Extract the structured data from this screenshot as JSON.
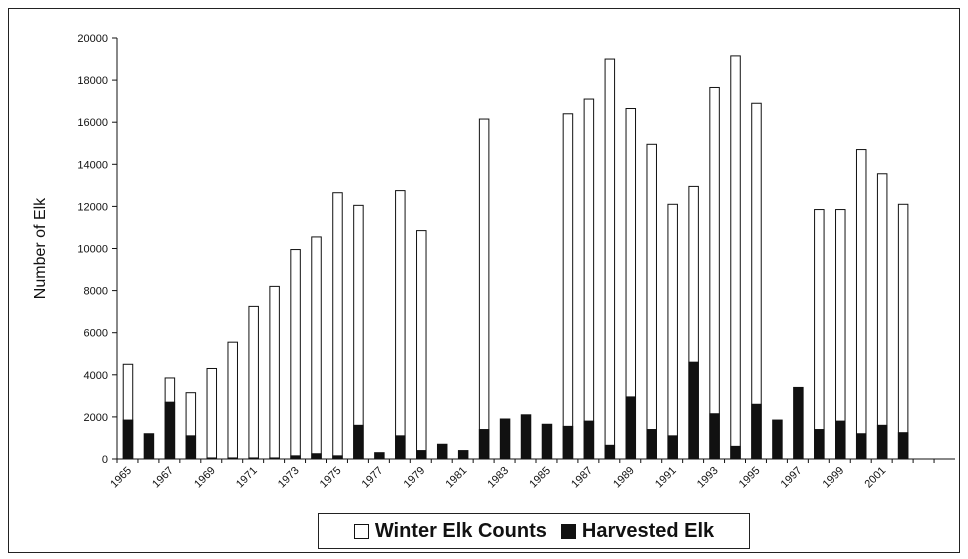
{
  "chart_data": {
    "type": "bar",
    "title": "",
    "xlabel": "",
    "ylabel": "Number of Elk",
    "ylim": [
      0,
      20000
    ],
    "yticks": [
      0,
      2000,
      4000,
      6000,
      8000,
      10000,
      12000,
      14000,
      16000,
      18000,
      20000
    ],
    "grid": false,
    "legend_position": "bottom",
    "categories": [
      "1965",
      "1966",
      "1967",
      "1968",
      "1969",
      "1970",
      "1971",
      "1972",
      "1973",
      "1974",
      "1975",
      "1976",
      "1977",
      "1978",
      "1979",
      "1980",
      "1981",
      "1982",
      "1983",
      "1984",
      "1985",
      "1986",
      "1987",
      "1988",
      "1989",
      "1990",
      "1991",
      "1992",
      "1993",
      "1994",
      "1995",
      "1996",
      "1997",
      "1998",
      "1999",
      "2000",
      "2001",
      "2002",
      "2003",
      "2004"
    ],
    "tick_labels": [
      "1965",
      "1967",
      "1969",
      "1971",
      "1973",
      "1975",
      "1977",
      "1979",
      "1981",
      "1983",
      "1985",
      "1987",
      "1989",
      "1991",
      "1993",
      "1995",
      "1997",
      "1999",
      "2001"
    ],
    "series": [
      {
        "name": "Winter Elk Counts",
        "color": "#ffffff",
        "values": [
          4500,
          null,
          3850,
          3150,
          4300,
          5550,
          7250,
          8200,
          9950,
          10550,
          12650,
          12050,
          null,
          12750,
          10850,
          null,
          null,
          16150,
          null,
          null,
          null,
          16400,
          17100,
          19000,
          16650,
          14950,
          12100,
          12950,
          17650,
          19150,
          16900,
          null,
          null,
          11850,
          11850,
          14700,
          13550,
          12100,
          null,
          null
        ]
      },
      {
        "name": "Harvested Elk",
        "color": "#111111",
        "values": [
          1850,
          1200,
          2700,
          1100,
          50,
          50,
          50,
          50,
          150,
          250,
          150,
          1600,
          300,
          1100,
          400,
          700,
          400,
          1400,
          1900,
          2100,
          1650,
          1550,
          1800,
          650,
          2950,
          1400,
          1100,
          4600,
          2150,
          600,
          2600,
          1850,
          3400,
          1400,
          1800,
          1200,
          1600,
          1250,
          null,
          null
        ]
      }
    ]
  }
}
